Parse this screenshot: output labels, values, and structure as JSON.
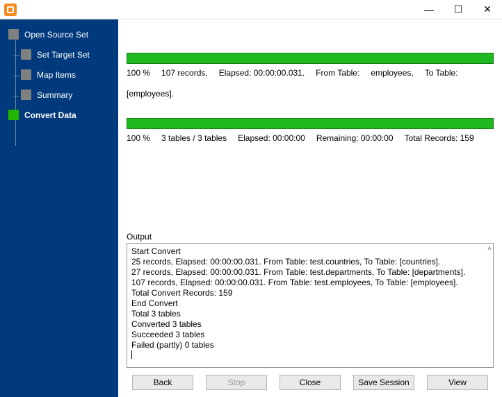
{
  "window": {
    "min_icon": "—",
    "max_icon": "☐",
    "close_icon": "✕"
  },
  "sidebar": {
    "steps": [
      {
        "label": "Open Source Set",
        "active": false,
        "child": false,
        "current": false
      },
      {
        "label": "Set Target Set",
        "active": false,
        "child": true,
        "current": false
      },
      {
        "label": "Map Items",
        "active": false,
        "child": true,
        "current": false
      },
      {
        "label": "Summary",
        "active": false,
        "child": true,
        "current": false
      },
      {
        "label": "Convert Data",
        "active": true,
        "child": false,
        "current": true
      }
    ]
  },
  "progress1": {
    "percent": "100 %",
    "records": "107 records,",
    "elapsed": "Elapsed: 00:00:00.031.",
    "from": "From Table:",
    "from_val": "employees,",
    "to": "To Table:",
    "to_val": "[employees]."
  },
  "progress2": {
    "percent": "100 %",
    "tables": "3 tables / 3 tables",
    "elapsed": "Elapsed: 00:00:00",
    "remaining": "Remaining: 00:00:00",
    "total": "Total Records: 159"
  },
  "output": {
    "label": "Output",
    "lines": [
      "Start Convert",
      "25 records,    Elapsed: 00:00:00.031.    From Table: test.countries,    To Table: [countries].",
      "27 records,    Elapsed: 00:00:00.031.    From Table: test.departments,    To Table: [departments].",
      "107 records,    Elapsed: 00:00:00.031.    From Table: test.employees,    To Table: [employees].",
      "Total Convert Records: 159",
      "End Convert",
      "Total 3 tables",
      "Converted 3 tables",
      "Succeeded 3 tables",
      "Failed (partly) 0 tables"
    ]
  },
  "buttons": {
    "back": "Back",
    "stop": "Stop",
    "close": "Close",
    "save": "Save Session",
    "view": "View"
  },
  "colors": {
    "sidebar_bg": "#003a7c",
    "progress_green": "#1fb81f",
    "icon_orange": "#f68b1f"
  }
}
